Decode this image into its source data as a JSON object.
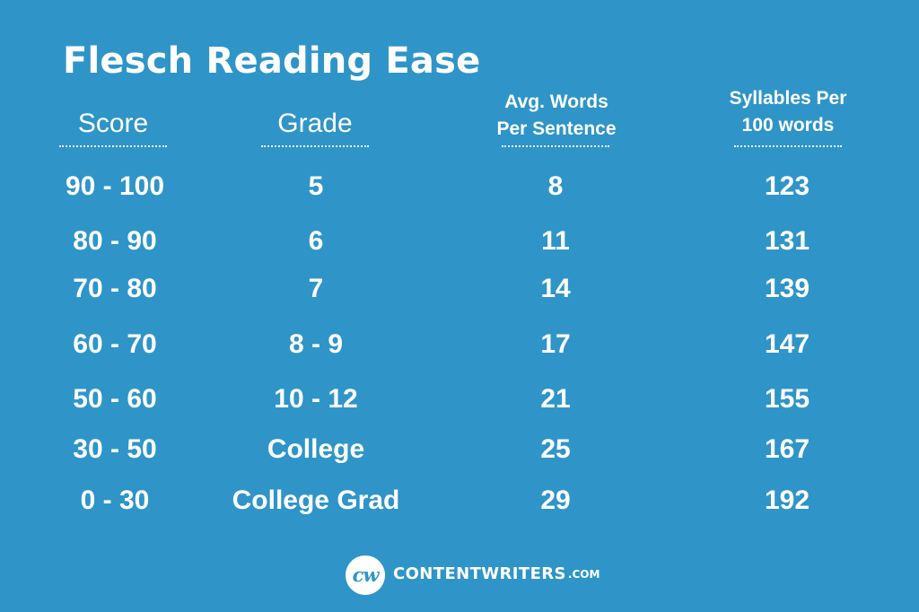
{
  "title": "Flesch Reading Ease",
  "headers": {
    "score": "Score",
    "grade": "Grade",
    "avg_words_line1": "Avg. Words",
    "avg_words_line2": "Per Sentence",
    "syllables_line1": "Syllables Per",
    "syllables_line2": "100 words"
  },
  "rows": [
    {
      "score": "90 - 100",
      "grade": "5",
      "words": "8",
      "syllables": "123"
    },
    {
      "score": "80 - 90",
      "grade": "6",
      "words": "11",
      "syllables": "131"
    },
    {
      "score": "70 - 80",
      "grade": "7",
      "words": "14",
      "syllables": "139"
    },
    {
      "score": "60 - 70",
      "grade": "8 - 9",
      "words": "17",
      "syllables": "147"
    },
    {
      "score": "50 - 60",
      "grade": "10 - 12",
      "words": "21",
      "syllables": "155"
    },
    {
      "score": "30 - 50",
      "grade": "College",
      "words": "25",
      "syllables": "167"
    },
    {
      "score": "0 - 30",
      "grade": "College Grad",
      "words": "29",
      "syllables": "192"
    }
  ],
  "logo": {
    "mark": "cw",
    "name": "CONTENTWRITERS",
    "tld": ".COM"
  },
  "colors": {
    "background": "#2f95c8",
    "text": "#ffffff"
  }
}
